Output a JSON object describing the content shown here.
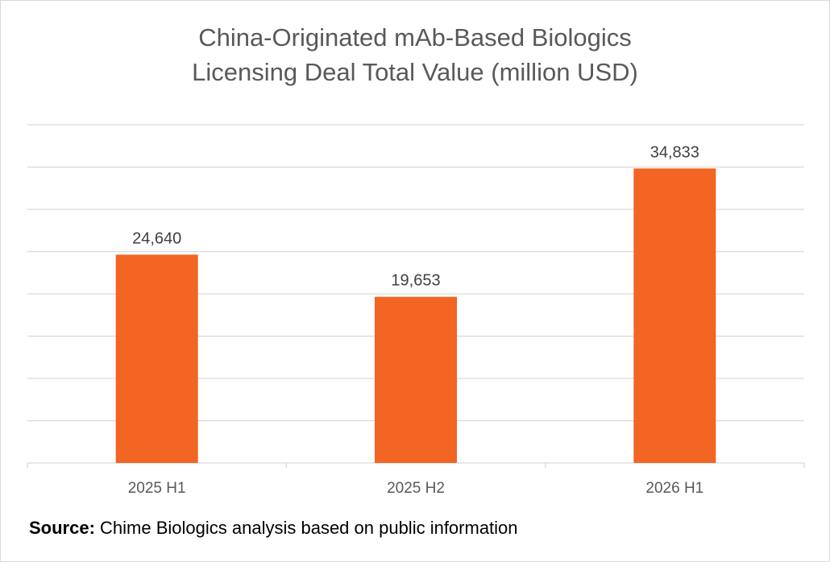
{
  "chart_data": {
    "type": "bar",
    "title": [
      "China-Originated mAb-Based Biologics",
      "Licensing Deal Total Value (million USD)"
    ],
    "categories": [
      "2025 H1",
      "2025 H2",
      "2026 H1"
    ],
    "values": [
      24640,
      19653,
      34833
    ],
    "data_labels": [
      "24,640",
      "19,653",
      "34,833"
    ],
    "xlabel": "",
    "ylabel": "",
    "ylim": [
      0,
      40000
    ],
    "y_grid_step": 5000,
    "grid": true,
    "legend": "none",
    "bar_color": "#f26522"
  },
  "source": {
    "label": "Source:",
    "text": " Chime Biologics analysis based on public information"
  },
  "colors": {
    "gridline": "#d9d9d9",
    "axis_text": "#595959",
    "label_text": "#404040"
  }
}
